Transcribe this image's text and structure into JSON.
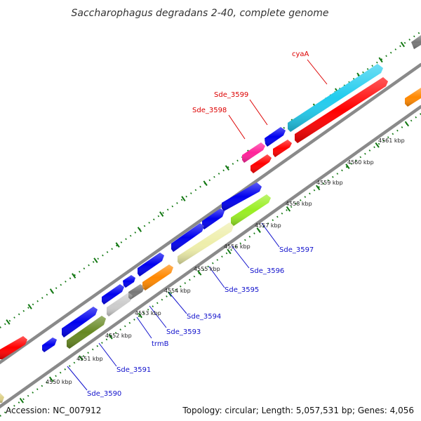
{
  "title": "Saccharophagus degradans 2-40, complete genome",
  "footer": {
    "accession": "Accession: NC_007912",
    "summary": "Topology: circular; Length: 5,057,531 bp; Genes: 4,056"
  },
  "ticks": [
    "4550 kbp",
    "4551 kbp",
    "4552 kbp",
    "4553 kbp",
    "4554 kbp",
    "4555 kbp",
    "4556 kbp",
    "4557 kbp",
    "4558 kbp",
    "4559 kbp",
    "4560 kbp",
    "4561 kbp"
  ],
  "labels": {
    "cyaA": "cyaA",
    "sde3599": "Sde_3599",
    "sde3598": "Sde_3598",
    "sde3597": "Sde_3597",
    "sde3596": "Sde_3596",
    "sde3595": "Sde_3595",
    "sde3594": "Sde_3594",
    "sde3593": "Sde_3593",
    "trmB": "trmB",
    "sde3591": "Sde_3591",
    "sde3590": "Sde_3590"
  },
  "colors": {
    "blue": "#0000ee",
    "red": "#ff0000",
    "cyan": "#22ccee",
    "magenta": "#ff2299",
    "orange": "#ff8800",
    "lime": "#99ee22",
    "khaki": "#eeeeaa",
    "olive": "#668822",
    "gray": "#777777",
    "lightgray": "#cccccc",
    "tickgreen": "#117711",
    "backbone": "#888888",
    "labelBlue": "#1111cc",
    "labelRed": "#dd0000"
  }
}
